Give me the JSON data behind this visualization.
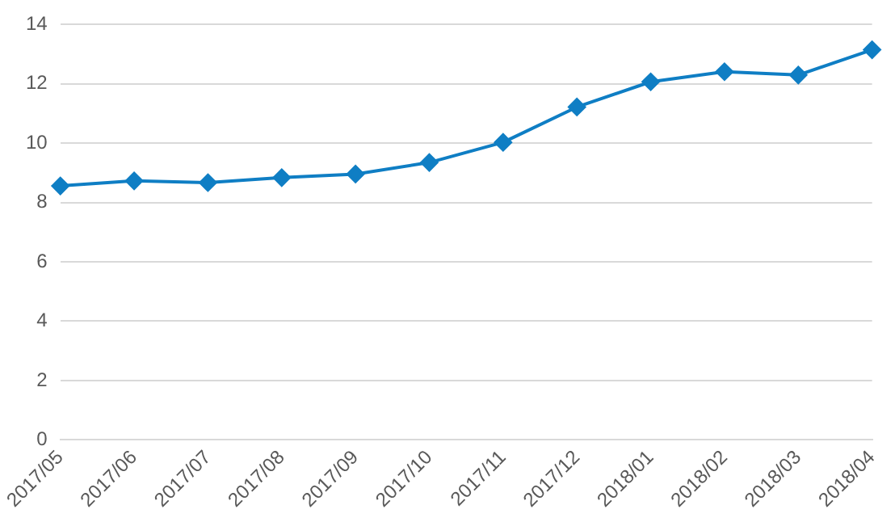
{
  "chart_data": {
    "type": "line",
    "categories": [
      "2017/05",
      "2017/06",
      "2017/07",
      "2017/08",
      "2017/09",
      "2017/10",
      "2017/11",
      "2017/12",
      "2018/01",
      "2018/02",
      "2018/03",
      "2018/04"
    ],
    "series": [
      {
        "color": "#0f7ec4",
        "values": [
          8.56,
          8.73,
          8.67,
          8.84,
          8.96,
          9.35,
          10.03,
          11.22,
          12.07,
          12.41,
          12.3,
          13.15
        ]
      }
    ],
    "ylim": [
      0,
      14
    ],
    "yticks": [
      0,
      2,
      4,
      6,
      8,
      10,
      12,
      14
    ],
    "grid": "y",
    "legend": false,
    "marker": "diamond",
    "line_style": "solid"
  }
}
